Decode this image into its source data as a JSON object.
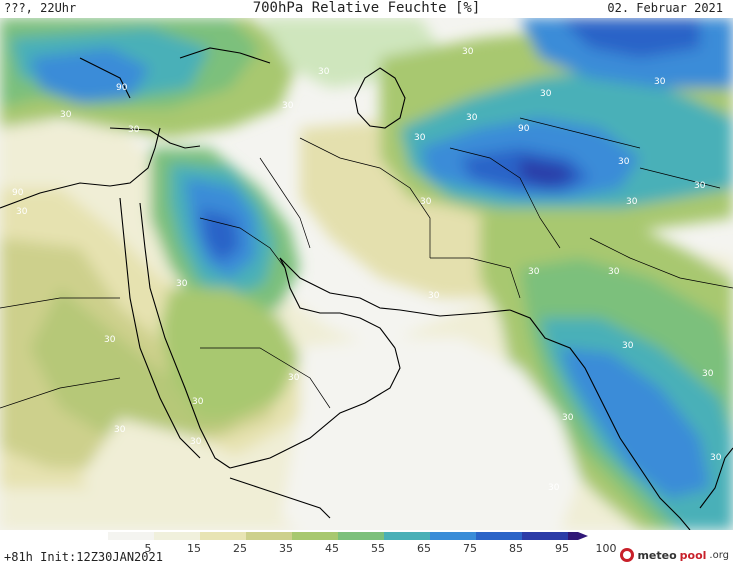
{
  "header": {
    "left_label": "???, 22Uhr",
    "title": "700hPa Relative Feuchte [%]",
    "date": "02. Februar 2021"
  },
  "map": {
    "region": "Middle East / Arabian Peninsula / South Asia",
    "contour_labels": [
      "90",
      "30",
      "30",
      "30",
      "90",
      "30",
      "90",
      "30",
      "30",
      "30",
      "30",
      "30",
      "30",
      "30",
      "30",
      "30",
      "30",
      "30",
      "30",
      "30",
      "30",
      "30",
      "30",
      "30",
      "30",
      "30",
      "30",
      "30",
      "30",
      "30",
      "30"
    ]
  },
  "legend": {
    "ticks": [
      "5",
      "15",
      "25",
      "35",
      "45",
      "55",
      "65",
      "75",
      "85",
      "95",
      "100"
    ],
    "colors": [
      "#f4f4f0",
      "#f0f0dc",
      "#e8e4b4",
      "#cdd08c",
      "#a8c870",
      "#7cc07c",
      "#4ab0b8",
      "#3a8cd8",
      "#2c64c8",
      "#2c3ca8",
      "#301878"
    ]
  },
  "footer": {
    "init_text": "+81h Init:12Z30JAN2021",
    "brand_part1": "meteo",
    "brand_part2": "pool",
    "brand_part3": ".org"
  }
}
